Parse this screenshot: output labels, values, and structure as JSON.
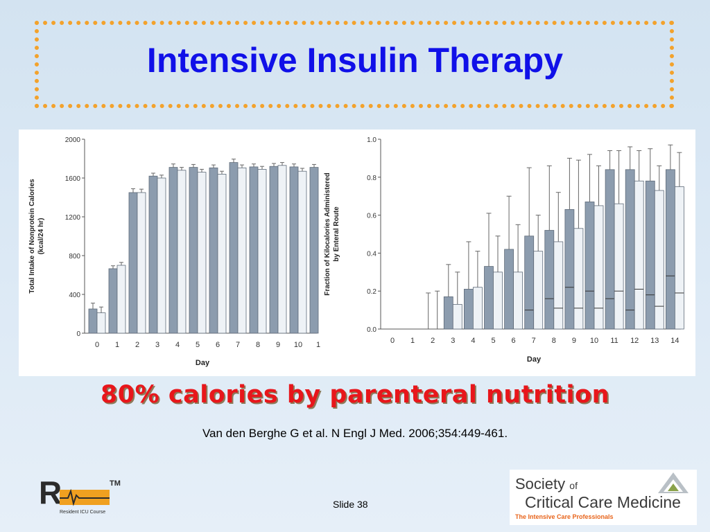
{
  "slide": {
    "title": "Intensive Insulin Therapy",
    "subtitle": "80% calories by parenteral nutrition",
    "citation": "Van den Berghe G et al.  N Engl J Med. 2006;354:449-461.",
    "slide_number": "Slide 38"
  },
  "logos": {
    "left_tm": "TM",
    "left_tagline": "Resident ICU Course",
    "sccm_society": "Society",
    "sccm_of": "of",
    "sccm_ccm": "Critical Care Medicine",
    "sccm_tagline": "The Intensive Care Professionals"
  },
  "colors": {
    "title": "#1010e8",
    "subtitle": "#e8161b",
    "dotted_border": "#f3a22c",
    "bar_dark": "#8c9cae",
    "bar_light": "#eef2f6"
  },
  "chart_data": [
    {
      "type": "bar",
      "xlabel": "Day",
      "ylabel": "Total Intake of Nonprotein Calories (kcal/24 hr)",
      "ylim": [
        0,
        2000
      ],
      "yticks": [
        0,
        400,
        800,
        1200,
        1600,
        2000
      ],
      "categories": [
        "0",
        "1",
        "2",
        "3",
        "4",
        "5",
        "6",
        "7",
        "8",
        "9",
        "10",
        "1"
      ],
      "series": [
        {
          "values": [
            250,
            665,
            1450,
            1620,
            1710,
            1710,
            1705,
            1760,
            1715,
            1720,
            1715,
            1710
          ],
          "errors": [
            60,
            30,
            40,
            30,
            35,
            30,
            30,
            35,
            30,
            30,
            30,
            30
          ]
        },
        {
          "values": [
            210,
            700,
            1450,
            1600,
            1680,
            1660,
            1640,
            1705,
            1690,
            1730,
            1670,
            null
          ],
          "errors": [
            60,
            30,
            35,
            30,
            30,
            30,
            30,
            30,
            30,
            30,
            30,
            null
          ]
        }
      ]
    },
    {
      "type": "bar",
      "xlabel": "Day",
      "ylabel": "Fraction of Kilocalories Administered by Enteral Route",
      "ylim": [
        0,
        1.0
      ],
      "yticks": [
        "0.0",
        "0.2",
        "0.4",
        "0.6",
        "0.8",
        "1.0"
      ],
      "categories": [
        "0",
        "1",
        "2",
        "3",
        "4",
        "5",
        "6",
        "7",
        "8",
        "9",
        "10",
        "11",
        "12",
        "13",
        "14"
      ],
      "series": [
        {
          "values": [
            0,
            0,
            0,
            0.17,
            0.21,
            0.33,
            0.42,
            0.49,
            0.52,
            0.63,
            0.67,
            0.84,
            0.84,
            0.78,
            0.84
          ],
          "upper": [
            null,
            null,
            0.19,
            0.34,
            0.46,
            0.61,
            0.7,
            0.85,
            0.86,
            0.9,
            0.92,
            0.94,
            0.96,
            0.95,
            0.97
          ],
          "median": [
            null,
            null,
            null,
            null,
            null,
            null,
            null,
            0.1,
            0.16,
            0.22,
            0.2,
            0.16,
            0.1,
            0.18,
            0.28
          ]
        },
        {
          "values": [
            0,
            0,
            0,
            0.13,
            0.22,
            0.3,
            0.3,
            0.41,
            0.46,
            0.53,
            0.65,
            0.66,
            0.78,
            0.73,
            0.75
          ],
          "upper": [
            null,
            null,
            0.2,
            0.3,
            0.41,
            0.49,
            0.55,
            0.6,
            0.72,
            0.89,
            0.86,
            0.94,
            0.94,
            0.86,
            0.93
          ],
          "median": [
            null,
            null,
            null,
            null,
            null,
            null,
            null,
            null,
            0.11,
            0.11,
            0.11,
            0.2,
            0.21,
            0.12,
            0.19
          ]
        }
      ]
    }
  ]
}
